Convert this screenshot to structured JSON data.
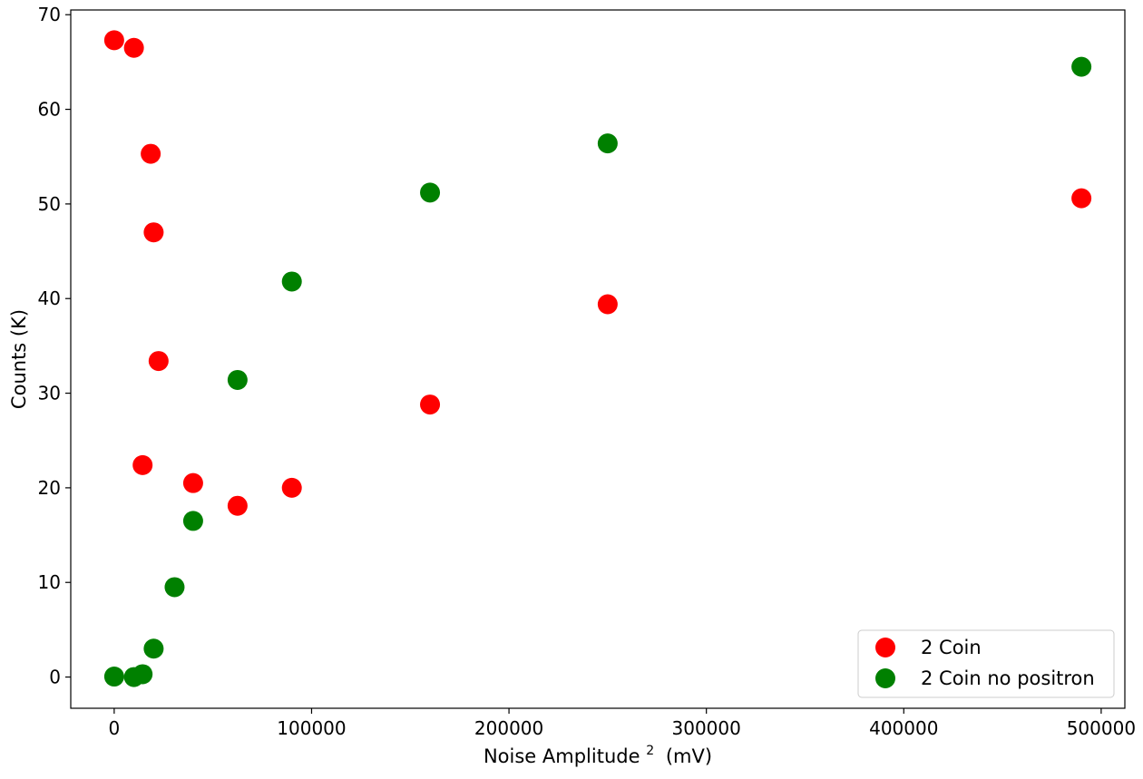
{
  "chart_data": {
    "type": "scatter",
    "xlabel": "Noise Amplitude",
    "xlabel_superscript": "2",
    "xlabel_unit": "(mV)",
    "ylabel": "Counts (K)",
    "xlim": [
      -22000,
      512000
    ],
    "ylim": [
      -3.3,
      70.5
    ],
    "xticks": [
      0,
      100000,
      200000,
      300000,
      400000,
      500000
    ],
    "yticks": [
      0,
      10,
      20,
      30,
      40,
      50,
      60,
      70
    ],
    "grid": false,
    "legend_position": "lower-right",
    "series": [
      {
        "name": "2 Coin",
        "color": "#ff0000",
        "points": [
          {
            "x": 0,
            "y": 67.3
          },
          {
            "x": 10000,
            "y": 66.5
          },
          {
            "x": 14400,
            "y": 22.4
          },
          {
            "x": 18500,
            "y": 55.3
          },
          {
            "x": 20000,
            "y": 47.0
          },
          {
            "x": 22500,
            "y": 33.4
          },
          {
            "x": 40000,
            "y": 20.5
          },
          {
            "x": 62500,
            "y": 18.1
          },
          {
            "x": 90000,
            "y": 20.0
          },
          {
            "x": 160000,
            "y": 28.8
          },
          {
            "x": 250000,
            "y": 39.4
          },
          {
            "x": 490000,
            "y": 50.6
          }
        ]
      },
      {
        "name": "2 Coin no positron",
        "color": "#008000",
        "points": [
          {
            "x": 0,
            "y": 0.05
          },
          {
            "x": 10000,
            "y": 0.0
          },
          {
            "x": 14400,
            "y": 0.3
          },
          {
            "x": 20000,
            "y": 3.0
          },
          {
            "x": 30600,
            "y": 9.5
          },
          {
            "x": 40000,
            "y": 16.5
          },
          {
            "x": 62500,
            "y": 31.4
          },
          {
            "x": 90000,
            "y": 41.8
          },
          {
            "x": 160000,
            "y": 51.2
          },
          {
            "x": 250000,
            "y": 56.4
          },
          {
            "x": 490000,
            "y": 64.5
          }
        ]
      }
    ]
  }
}
